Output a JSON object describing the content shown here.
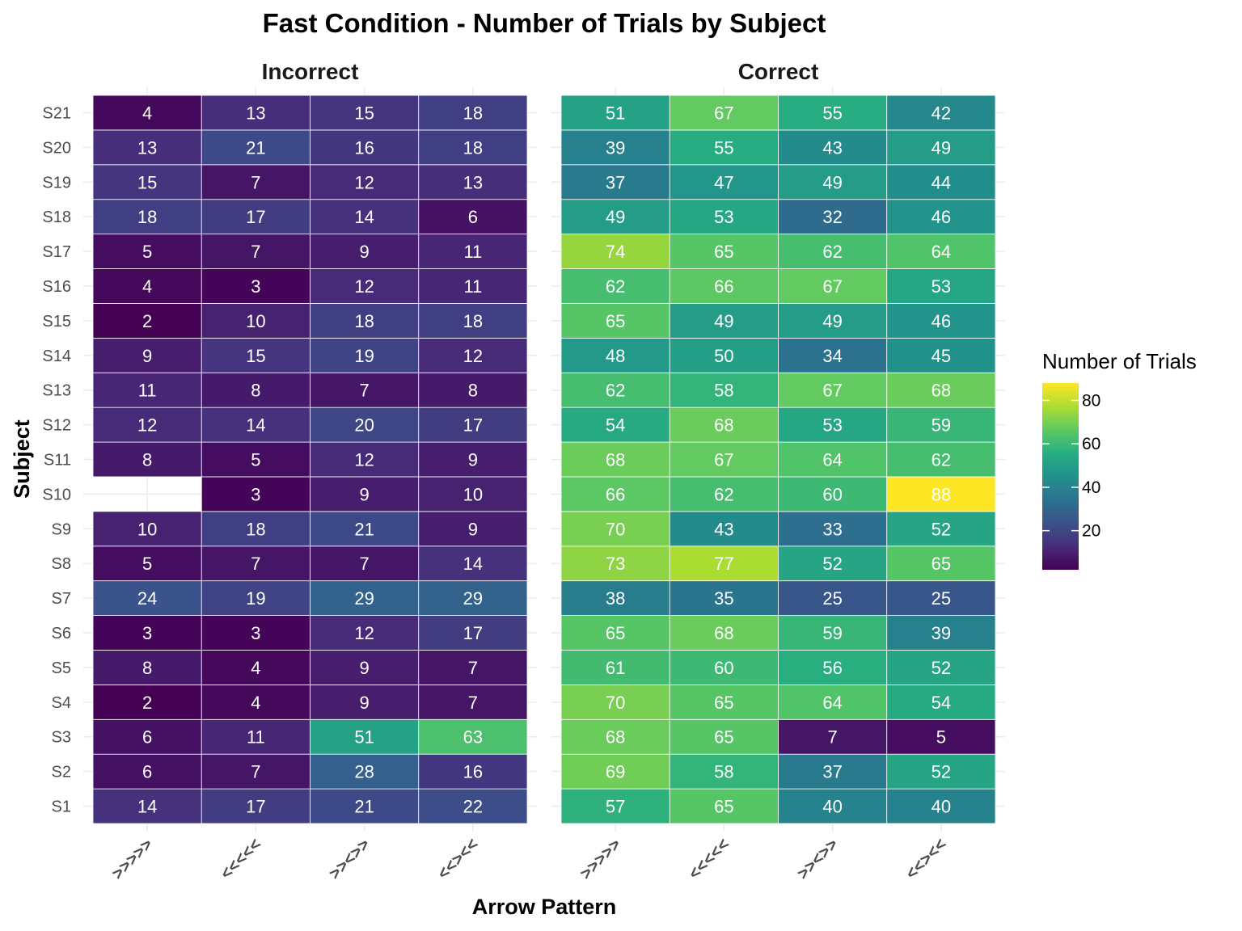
{
  "chart_data": {
    "type": "heatmap",
    "title": "Fast Condition - Number of Trials by Subject",
    "xlabel": "Arrow Pattern",
    "ylabel": "Subject",
    "panels": [
      "Incorrect",
      "Correct"
    ],
    "x_categories": [
      ">>>>>",
      "<<<<<",
      ">><>>",
      "<<><<"
    ],
    "y_categories": [
      "S1",
      "S2",
      "S3",
      "S4",
      "S5",
      "S6",
      "S7",
      "S8",
      "S9",
      "S10",
      "S11",
      "S12",
      "S13",
      "S14",
      "S15",
      "S16",
      "S17",
      "S18",
      "S19",
      "S20",
      "S21"
    ],
    "values": {
      "Incorrect": [
        [
          14,
          17,
          21,
          22
        ],
        [
          6,
          7,
          28,
          16
        ],
        [
          6,
          11,
          51,
          63
        ],
        [
          2,
          4,
          9,
          7
        ],
        [
          8,
          4,
          9,
          7
        ],
        [
          3,
          3,
          12,
          17
        ],
        [
          24,
          19,
          29,
          29
        ],
        [
          5,
          7,
          7,
          14
        ],
        [
          10,
          18,
          21,
          9
        ],
        [
          null,
          3,
          9,
          10
        ],
        [
          8,
          5,
          12,
          9
        ],
        [
          12,
          14,
          20,
          17
        ],
        [
          11,
          8,
          7,
          8
        ],
        [
          9,
          15,
          19,
          12
        ],
        [
          2,
          10,
          18,
          18
        ],
        [
          4,
          3,
          12,
          11
        ],
        [
          5,
          7,
          9,
          11
        ],
        [
          18,
          17,
          14,
          6
        ],
        [
          15,
          7,
          12,
          13
        ],
        [
          13,
          21,
          16,
          18
        ],
        [
          4,
          13,
          15,
          18
        ]
      ],
      "Correct": [
        [
          57,
          65,
          40,
          40
        ],
        [
          69,
          58,
          37,
          52
        ],
        [
          68,
          65,
          7,
          5
        ],
        [
          70,
          65,
          64,
          54
        ],
        [
          61,
          60,
          56,
          52
        ],
        [
          65,
          68,
          59,
          39
        ],
        [
          38,
          35,
          25,
          25
        ],
        [
          73,
          77,
          52,
          65
        ],
        [
          70,
          43,
          33,
          52
        ],
        [
          66,
          62,
          60,
          88
        ],
        [
          68,
          67,
          64,
          62
        ],
        [
          54,
          68,
          53,
          59
        ],
        [
          62,
          58,
          67,
          68
        ],
        [
          48,
          50,
          34,
          45
        ],
        [
          65,
          49,
          49,
          46
        ],
        [
          62,
          66,
          67,
          53
        ],
        [
          74,
          65,
          62,
          64
        ],
        [
          49,
          53,
          32,
          46
        ],
        [
          37,
          47,
          49,
          44
        ],
        [
          39,
          55,
          43,
          49
        ],
        [
          51,
          67,
          55,
          42
        ]
      ]
    },
    "legend": {
      "title": "Number of Trials",
      "ticks": [
        20,
        40,
        60,
        80
      ],
      "range": [
        2,
        88
      ],
      "colorscale": "viridis",
      "placement": "right"
    }
  }
}
